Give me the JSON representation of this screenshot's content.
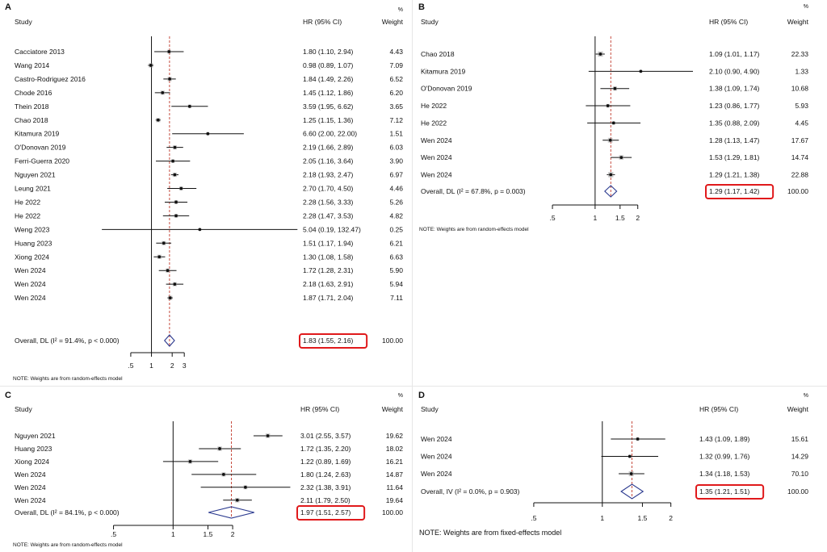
{
  "chart_data": [
    {
      "type": "forest",
      "panel_label": "A",
      "header": {
        "study": "Study",
        "hr": "HR (95% CI)",
        "pct": "%",
        "weight": "Weight"
      },
      "x_ticks": [
        0.5,
        1,
        2,
        3
      ],
      "x_tick_labels": [
        ".5",
        "1",
        "2",
        "3"
      ],
      "scale": "log",
      "overall_value": 1.83,
      "studies": [
        {
          "name": "Cacciatore 2013",
          "hr": 1.8,
          "lower": 1.1,
          "upper": 2.94,
          "ci_text": "1.80 (1.10, 2.94)",
          "weight": "4.43"
        },
        {
          "name": "Wang 2014",
          "hr": 0.98,
          "lower": 0.89,
          "upper": 1.07,
          "ci_text": "0.98 (0.89, 1.07)",
          "weight": "7.09"
        },
        {
          "name": "Castro-Rodriguez 2016",
          "hr": 1.84,
          "lower": 1.49,
          "upper": 2.26,
          "ci_text": "1.84 (1.49, 2.26)",
          "weight": "6.52"
        },
        {
          "name": "Chode 2016",
          "hr": 1.45,
          "lower": 1.12,
          "upper": 1.86,
          "ci_text": "1.45 (1.12, 1.86)",
          "weight": "6.20"
        },
        {
          "name": "Thein 2018",
          "hr": 3.59,
          "lower": 1.95,
          "upper": 6.62,
          "ci_text": "3.59 (1.95, 6.62)",
          "weight": "3.65"
        },
        {
          "name": "Chao 2018",
          "hr": 1.25,
          "lower": 1.15,
          "upper": 1.36,
          "ci_text": "1.25 (1.15, 1.36)",
          "weight": "7.12"
        },
        {
          "name": "Kitamura 2019",
          "hr": 6.6,
          "lower": 2.0,
          "upper": 22.0,
          "ci_text": "6.60 (2.00, 22.00)",
          "weight": "1.51"
        },
        {
          "name": "O'Donovan 2019",
          "hr": 2.19,
          "lower": 1.66,
          "upper": 2.89,
          "ci_text": "2.19 (1.66, 2.89)",
          "weight": "6.03"
        },
        {
          "name": "Ferri-Guerra 2020",
          "hr": 2.05,
          "lower": 1.16,
          "upper": 3.64,
          "ci_text": "2.05 (1.16, 3.64)",
          "weight": "3.90"
        },
        {
          "name": "Nguyen 2021",
          "hr": 2.18,
          "lower": 1.93,
          "upper": 2.47,
          "ci_text": "2.18 (1.93, 2.47)",
          "weight": "6.97"
        },
        {
          "name": "Leung 2021",
          "hr": 2.7,
          "lower": 1.7,
          "upper": 4.5,
          "ci_text": "2.70 (1.70, 4.50)",
          "weight": "4.46"
        },
        {
          "name": "He 2022",
          "hr": 2.28,
          "lower": 1.56,
          "upper": 3.33,
          "ci_text": "2.28 (1.56, 3.33)",
          "weight": "5.26"
        },
        {
          "name": "He 2022",
          "hr": 2.28,
          "lower": 1.47,
          "upper": 3.53,
          "ci_text": "2.28 (1.47, 3.53)",
          "weight": "4.82"
        },
        {
          "name": "Weng 2023",
          "hr": 5.04,
          "lower": 0.19,
          "upper": 132.47,
          "ci_text": "5.04 (0.19, 132.47)",
          "weight": "0.25"
        },
        {
          "name": "Huang 2023",
          "hr": 1.51,
          "lower": 1.17,
          "upper": 1.94,
          "ci_text": "1.51 (1.17, 1.94)",
          "weight": "6.21"
        },
        {
          "name": "Xiong 2024",
          "hr": 1.3,
          "lower": 1.08,
          "upper": 1.58,
          "ci_text": "1.30 (1.08, 1.58)",
          "weight": "6.63"
        },
        {
          "name": "Wen 2024",
          "hr": 1.72,
          "lower": 1.28,
          "upper": 2.31,
          "ci_text": "1.72 (1.28, 2.31)",
          "weight": "5.90"
        },
        {
          "name": "Wen 2024",
          "hr": 2.18,
          "lower": 1.63,
          "upper": 2.91,
          "ci_text": "2.18 (1.63, 2.91)",
          "weight": "5.94"
        },
        {
          "name": "Wen 2024",
          "hr": 1.87,
          "lower": 1.71,
          "upper": 2.04,
          "ci_text": "1.87 (1.71, 2.04)",
          "weight": "7.11"
        }
      ],
      "overall": {
        "label": "Overall, DL (I² = 91.4%, p < 0.000)",
        "hr": 1.83,
        "lower": 1.55,
        "upper": 2.16,
        "ci_text": "1.83 (1.55, 2.16)",
        "weight": "100.00",
        "highlighted": true
      },
      "note": "NOTE: Weights are from random-effects model"
    },
    {
      "type": "forest",
      "panel_label": "B",
      "header": {
        "study": "Study",
        "hr": "HR (95% CI)",
        "pct": "%",
        "weight": "Weight"
      },
      "x_ticks": [
        0.5,
        1,
        1.5,
        2
      ],
      "x_tick_labels": [
        ".5",
        "1",
        "1.5",
        "2"
      ],
      "scale": "log",
      "overall_value": 1.29,
      "studies": [
        {
          "name": "Chao 2018",
          "hr": 1.09,
          "lower": 1.01,
          "upper": 1.17,
          "ci_text": "1.09 (1.01, 1.17)",
          "weight": "22.33"
        },
        {
          "name": "Kitamura 2019",
          "hr": 2.1,
          "lower": 0.9,
          "upper": 4.9,
          "ci_text": "2.10 (0.90, 4.90)",
          "weight": "1.33"
        },
        {
          "name": "O'Donovan 2019",
          "hr": 1.38,
          "lower": 1.09,
          "upper": 1.74,
          "ci_text": "1.38 (1.09, 1.74)",
          "weight": "10.68"
        },
        {
          "name": "He 2022",
          "hr": 1.23,
          "lower": 0.86,
          "upper": 1.77,
          "ci_text": "1.23 (0.86, 1.77)",
          "weight": "5.93"
        },
        {
          "name": "He 2022",
          "hr": 1.35,
          "lower": 0.88,
          "upper": 2.09,
          "ci_text": "1.35 (0.88, 2.09)",
          "weight": "4.45"
        },
        {
          "name": "Wen 2024",
          "hr": 1.28,
          "lower": 1.13,
          "upper": 1.47,
          "ci_text": "1.28 (1.13, 1.47)",
          "weight": "17.67"
        },
        {
          "name": "Wen 2024",
          "hr": 1.53,
          "lower": 1.29,
          "upper": 1.81,
          "ci_text": "1.53 (1.29, 1.81)",
          "weight": "14.74"
        },
        {
          "name": "Wen 2024",
          "hr": 1.29,
          "lower": 1.21,
          "upper": 1.38,
          "ci_text": "1.29 (1.21, 1.38)",
          "weight": "22.88"
        }
      ],
      "overall": {
        "label": "Overall, DL (I² = 67.8%, p = 0.003)",
        "hr": 1.29,
        "lower": 1.17,
        "upper": 1.42,
        "ci_text": "1.29 (1.17, 1.42)",
        "weight": "100.00",
        "highlighted": true
      },
      "note": "NOTE: Weights are from random-effects model"
    },
    {
      "type": "forest",
      "panel_label": "C",
      "header": {
        "study": "Study",
        "hr": "HR (95% CI)",
        "pct": "%",
        "weight": "Weight"
      },
      "x_ticks": [
        0.5,
        1,
        1.5,
        2
      ],
      "x_tick_labels": [
        ".5",
        "1",
        "1.5",
        "2"
      ],
      "scale": "log",
      "overall_value": 1.97,
      "studies": [
        {
          "name": "Nguyen 2021",
          "hr": 3.01,
          "lower": 2.55,
          "upper": 3.57,
          "ci_text": "3.01 (2.55, 3.57)",
          "weight": "19.62"
        },
        {
          "name": "Huang 2023",
          "hr": 1.72,
          "lower": 1.35,
          "upper": 2.2,
          "ci_text": "1.72 (1.35, 2.20)",
          "weight": "18.02"
        },
        {
          "name": "Xiong 2024",
          "hr": 1.22,
          "lower": 0.89,
          "upper": 1.69,
          "ci_text": "1.22 (0.89, 1.69)",
          "weight": "16.21"
        },
        {
          "name": "Wen 2024",
          "hr": 1.8,
          "lower": 1.24,
          "upper": 2.63,
          "ci_text": "1.80 (1.24, 2.63)",
          "weight": "14.87"
        },
        {
          "name": "Wen 2024",
          "hr": 2.32,
          "lower": 1.38,
          "upper": 3.91,
          "ci_text": "2.32 (1.38, 3.91)",
          "weight": "11.64"
        },
        {
          "name": "Wen 2024",
          "hr": 2.11,
          "lower": 1.79,
          "upper": 2.5,
          "ci_text": "2.11 (1.79, 2.50)",
          "weight": "19.64"
        }
      ],
      "overall": {
        "label": "Overall, DL (I² = 84.1%, p < 0.000)",
        "hr": 1.97,
        "lower": 1.51,
        "upper": 2.57,
        "ci_text": "1.97 (1.51, 2.57)",
        "weight": "100.00",
        "highlighted": true
      },
      "note": "NOTE: Weights are from random-effects model"
    },
    {
      "type": "forest",
      "panel_label": "D",
      "header": {
        "study": "Study",
        "hr": "HR (95% CI)",
        "pct": "%",
        "weight": "Weight"
      },
      "x_ticks": [
        0.5,
        1,
        1.5,
        2
      ],
      "x_tick_labels": [
        ".5",
        "1",
        "1.5",
        "2"
      ],
      "scale": "log",
      "overall_value": 1.35,
      "studies": [
        {
          "name": "Wen 2024",
          "hr": 1.43,
          "lower": 1.09,
          "upper": 1.89,
          "ci_text": "1.43 (1.09, 1.89)",
          "weight": "15.61"
        },
        {
          "name": "Wen 2024",
          "hr": 1.32,
          "lower": 0.99,
          "upper": 1.76,
          "ci_text": "1.32 (0.99, 1.76)",
          "weight": "14.29"
        },
        {
          "name": "Wen 2024",
          "hr": 1.34,
          "lower": 1.18,
          "upper": 1.53,
          "ci_text": "1.34 (1.18, 1.53)",
          "weight": "70.10"
        }
      ],
      "overall": {
        "label": "Overall, IV (I² = 0.0%, p = 0.903)",
        "hr": 1.35,
        "lower": 1.21,
        "upper": 1.51,
        "ci_text": "1.35 (1.21, 1.51)",
        "weight": "100.00",
        "highlighted": true
      },
      "note": "NOTE: Weights are from fixed-effects model"
    }
  ],
  "colors": {
    "text": "#111111",
    "line": "#111111",
    "null_line": "#111111",
    "overall_line": "#c0392b",
    "diamond": "#2b3a8f",
    "highlight": "#e0191b"
  }
}
